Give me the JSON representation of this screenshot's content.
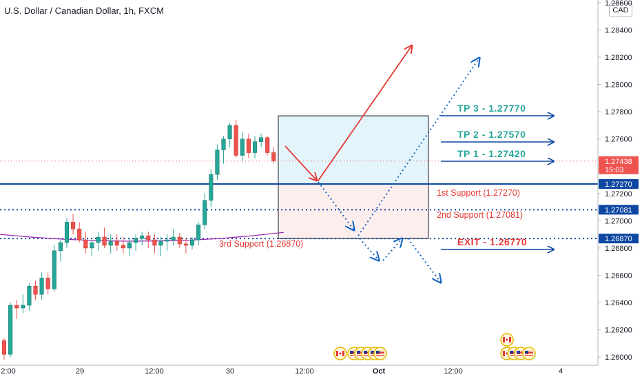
{
  "header": {
    "title": "U.S. Dollar / Canadian Dollar, 1h, FXCM"
  },
  "currency_badge": "CAD",
  "colors": {
    "up": "#26a69a",
    "down": "#ef5350",
    "support": "#0d47a1",
    "dotted": "#1565c0",
    "red": "#e53935",
    "ma": "#9c27b0"
  },
  "chart_data": {
    "type": "candlestick",
    "ylim": [
      1.2594,
      1.2862
    ],
    "y_ticks": [
      "1.28600",
      "1.28400",
      "1.28200",
      "1.28000",
      "1.27800",
      "1.27600",
      "1.27200",
      "1.27000",
      "1.26800",
      "1.26600",
      "1.26400",
      "1.26200",
      "1.26000"
    ],
    "x_ticks": [
      "2:00",
      "29",
      "12:00",
      "30",
      "12:00",
      "Oct",
      "12:00",
      "4"
    ],
    "candles": [
      [
        1.2612,
        1.2614,
        1.2598,
        1.2602
      ],
      [
        1.2602,
        1.264,
        1.26,
        1.2638
      ],
      [
        1.2638,
        1.2642,
        1.2628,
        1.2636
      ],
      [
        1.2636,
        1.2646,
        1.2632,
        1.2638
      ],
      [
        1.2638,
        1.2654,
        1.2634,
        1.2652
      ],
      [
        1.2652,
        1.2656,
        1.2642,
        1.2646
      ],
      [
        1.2646,
        1.2662,
        1.2642,
        1.2658
      ],
      [
        1.2658,
        1.2662,
        1.2646,
        1.265
      ],
      [
        1.265,
        1.2682,
        1.2648,
        1.2678
      ],
      [
        1.2678,
        1.2686,
        1.267,
        1.2684
      ],
      [
        1.2684,
        1.2702,
        1.268,
        1.2699
      ],
      [
        1.2699,
        1.2705,
        1.269,
        1.2694
      ],
      [
        1.2694,
        1.2699,
        1.2684,
        1.2686
      ],
      [
        1.2686,
        1.2692,
        1.2676,
        1.268
      ],
      [
        1.268,
        1.2686,
        1.2674,
        1.2684
      ],
      [
        1.2684,
        1.2692,
        1.2678,
        1.2688
      ],
      [
        1.2688,
        1.2695,
        1.268,
        1.2682
      ],
      [
        1.2682,
        1.269,
        1.2676,
        1.2685
      ],
      [
        1.2685,
        1.269,
        1.2678,
        1.2682
      ],
      [
        1.2682,
        1.2688,
        1.2676,
        1.268
      ],
      [
        1.268,
        1.2687,
        1.2674,
        1.2684
      ],
      [
        1.2684,
        1.269,
        1.2678,
        1.2687
      ],
      [
        1.2687,
        1.2692,
        1.2682,
        1.2689
      ],
      [
        1.2689,
        1.2692,
        1.268,
        1.2686
      ],
      [
        1.2686,
        1.269,
        1.2676,
        1.2682
      ],
      [
        1.2682,
        1.2688,
        1.2674,
        1.2685
      ],
      [
        1.2685,
        1.269,
        1.2678,
        1.2686
      ],
      [
        1.2686,
        1.2694,
        1.2682,
        1.2688
      ],
      [
        1.2688,
        1.2691,
        1.268,
        1.2683
      ],
      [
        1.2683,
        1.2687,
        1.2676,
        1.2682
      ],
      [
        1.2682,
        1.2688,
        1.2679,
        1.2686
      ],
      [
        1.2686,
        1.2699,
        1.2682,
        1.2697
      ],
      [
        1.2697,
        1.272,
        1.2694,
        1.2715
      ],
      [
        1.2715,
        1.2738,
        1.271,
        1.2734
      ],
      [
        1.2734,
        1.2756,
        1.273,
        1.2752
      ],
      [
        1.2752,
        1.2762,
        1.2742,
        1.276
      ],
      [
        1.276,
        1.2772,
        1.2754,
        1.277
      ],
      [
        1.277,
        1.2774,
        1.2746,
        1.2748
      ],
      [
        1.2748,
        1.2765,
        1.2744,
        1.276
      ],
      [
        1.276,
        1.2764,
        1.2746,
        1.275
      ],
      [
        1.275,
        1.2762,
        1.2746,
        1.2758
      ],
      [
        1.2758,
        1.2764,
        1.2754,
        1.2761
      ],
      [
        1.2761,
        1.2762,
        1.2748,
        1.275
      ],
      [
        1.275,
        1.2754,
        1.2742,
        1.2744
      ]
    ],
    "moving_average": [
      [
        1.269,
        1.2688,
        1.26865,
        1.26855,
        1.2685,
        1.26852,
        1.26858,
        1.2687,
        1.2689,
        1.26915
      ]
    ],
    "levels": {
      "support_solid": 1.2727,
      "support_dotted": 1.27081,
      "third_support": 1.2687,
      "last_price": 1.27438
    },
    "price_labels": [
      {
        "text": "1.27438",
        "sub": "15:03",
        "value": 1.27438,
        "kind": "last"
      },
      {
        "text": "1.27270",
        "value": 1.2727,
        "kind": "level"
      },
      {
        "text": "1.27081",
        "value": 1.27081,
        "kind": "level"
      },
      {
        "text": "1.26870",
        "value": 1.2687,
        "kind": "level"
      }
    ],
    "annotations": {
      "tp3": "TP 3 - 1.27770",
      "tp2": "TP 2 - 1.27570",
      "tp1": "TP 1 - 1.27420",
      "exit": "EXIT - 1.26770",
      "s1": "1st Support (1.27270)",
      "s2": "2nd Support (1.27081)",
      "s3": "3rd Support (1.26870)"
    },
    "target_box": {
      "top": 1.2777,
      "entry": 1.2727,
      "bottom": 1.2687
    }
  }
}
